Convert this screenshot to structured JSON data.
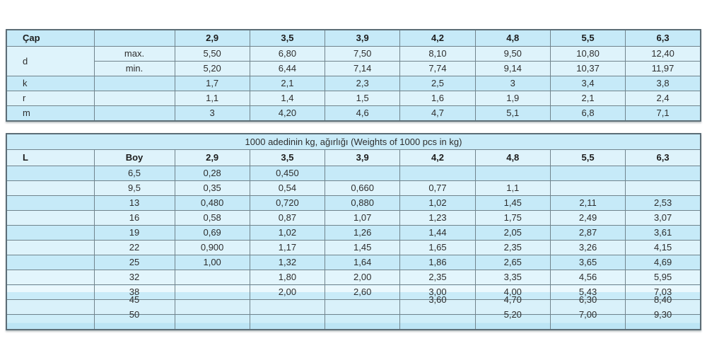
{
  "palette": {
    "row_dark": "#c6eaf8",
    "row_light": "#def3fb",
    "title_row": "#c9ebf8",
    "grid_border": "#71848d",
    "outer_border": "#5d6e77",
    "text": "#2e2e2e",
    "page_background": "#ffffff"
  },
  "table1": {
    "header": [
      "Çap",
      "",
      "2,9",
      "3,5",
      "3,9",
      "4,2",
      "4,8",
      "5,5",
      "6,3"
    ],
    "rows": [
      {
        "label": "d",
        "labelRowspan": 2,
        "sub": "max.",
        "shade": "light",
        "values": [
          "5,50",
          "6,80",
          "7,50",
          "8,10",
          "9,50",
          "10,80",
          "12,40"
        ]
      },
      {
        "label": null,
        "sub": "min.",
        "shade": "light",
        "values": [
          "5,20",
          "6,44",
          "7,14",
          "7,74",
          "9,14",
          "10,37",
          "11,97"
        ]
      },
      {
        "label": "k",
        "sub": "",
        "shade": "dark",
        "values": [
          "1,7",
          "2,1",
          "2,3",
          "2,5",
          "3",
          "3,4",
          "3,8"
        ]
      },
      {
        "label": "r",
        "sub": "",
        "shade": "light",
        "values": [
          "1,1",
          "1,4",
          "1,5",
          "1,6",
          "1,9",
          "2,1",
          "2,4"
        ]
      },
      {
        "label": "m",
        "sub": "",
        "shade": "dark",
        "values": [
          "3",
          "4,20",
          "4,6",
          "4,7",
          "5,1",
          "6,8",
          "7,1"
        ]
      }
    ]
  },
  "table2": {
    "title": "1000 adedinin kg, ağırlığı  (Weights of 1000 pcs in kg)",
    "header": [
      "L",
      "Boy",
      "2,9",
      "3,5",
      "3,9",
      "4,2",
      "4,8",
      "5,5",
      "6,3"
    ],
    "rows": [
      {
        "boy": "6,5",
        "shade": "dark",
        "struck": false,
        "values": [
          "0,28",
          "0,450",
          "",
          "",
          "",
          "",
          ""
        ]
      },
      {
        "boy": "9,5",
        "shade": "light",
        "struck": false,
        "values": [
          "0,35",
          "0,54",
          "0,660",
          "0,77",
          "1,1",
          "",
          ""
        ]
      },
      {
        "boy": "13",
        "shade": "dark",
        "struck": false,
        "values": [
          "0,480",
          "0,720",
          "0,880",
          "1,02",
          "1,45",
          "2,11",
          "2,53"
        ]
      },
      {
        "boy": "16",
        "shade": "light",
        "struck": false,
        "values": [
          "0,58",
          "0,87",
          "1,07",
          "1,23",
          "1,75",
          "2,49",
          "3,07"
        ]
      },
      {
        "boy": "19",
        "shade": "dark",
        "struck": false,
        "values": [
          "0,69",
          "1,02",
          "1,26",
          "1,44",
          "2,05",
          "2,87",
          "3,61"
        ]
      },
      {
        "boy": "22",
        "shade": "light",
        "struck": false,
        "values": [
          "0,900",
          "1,17",
          "1,45",
          "1,65",
          "2,35",
          "3,26",
          "4,15"
        ]
      },
      {
        "boy": "25",
        "shade": "dark",
        "struck": false,
        "values": [
          "1,00",
          "1,32",
          "1,64",
          "1,86",
          "2,65",
          "3,65",
          "4,69"
        ]
      },
      {
        "boy": "32",
        "shade": "light32",
        "struck": false,
        "values": [
          "",
          "1,80",
          "2,00",
          "2,35",
          "3,35",
          "4,56",
          "5,95"
        ]
      },
      {
        "boy": "38",
        "shade": "grad38",
        "struck": false,
        "values": [
          "",
          "2,00",
          "2,60",
          "3,00",
          "4,00",
          "5,43",
          "7,03"
        ]
      },
      {
        "boy": "45",
        "shade": "light45",
        "struck": true,
        "values": [
          "",
          "",
          "",
          "3,60",
          "4,70",
          "6,30",
          "8,40"
        ]
      },
      {
        "boy": "50",
        "shade": "grad50",
        "struck": true,
        "values": [
          "",
          "",
          "",
          "",
          "5,20",
          "7,00",
          "9,30"
        ]
      }
    ]
  }
}
